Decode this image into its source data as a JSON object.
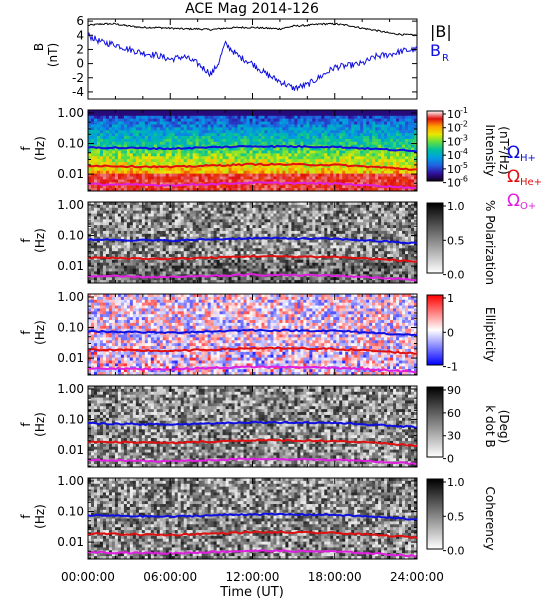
{
  "chart_data": {
    "title": "ACE Mag 2014-126",
    "type": "line",
    "x_axis": {
      "label": "Time (UT)",
      "ticks": [
        "00:00:00",
        "06:00:00",
        "12:00:00",
        "18:00:00",
        "24:00:00"
      ],
      "range_hours": [
        0,
        24
      ]
    },
    "panels": [
      {
        "id": "b-field",
        "type": "line",
        "ylabel": "B",
        "yunit": "(nT)",
        "yticks": [
          "6",
          "4",
          "2",
          "0",
          "-2",
          "-4"
        ],
        "ylim": [
          -5,
          6.3
        ],
        "legend": [
          {
            "label": "|B|",
            "color": "#000000"
          },
          {
            "label": "B",
            "sub": "R",
            "color": "#1010e0"
          }
        ],
        "series": [
          {
            "name": "|B|",
            "color": "#000000",
            "x": [
              0,
              1,
              2,
              3,
              4,
              5,
              6,
              7,
              8,
              9,
              10,
              11,
              12,
              13,
              14,
              15,
              16,
              17,
              18,
              19,
              20,
              21,
              22,
              23,
              24
            ],
            "values": [
              5.4,
              5.6,
              5.6,
              5.3,
              5.1,
              5.1,
              5.0,
              4.9,
              4.9,
              4.8,
              5.0,
              5.1,
              5.1,
              5.0,
              4.9,
              5.3,
              5.4,
              5.6,
              5.6,
              5.4,
              5.0,
              4.7,
              4.3,
              4.1,
              4.0
            ]
          },
          {
            "name": "B_R",
            "color": "#1010e0",
            "x": [
              0,
              1,
              2,
              3,
              4,
              5,
              6,
              7,
              8,
              9,
              9.5,
              10,
              11,
              12,
              13,
              14,
              15,
              16,
              17,
              18,
              19,
              20,
              21,
              22,
              23,
              24
            ],
            "values": [
              4.0,
              3.0,
              2.7,
              2.0,
              1.5,
              1.2,
              0.6,
              1.0,
              0.0,
              -1.5,
              0.0,
              2.8,
              1.0,
              0.0,
              -1.5,
              -2.5,
              -3.5,
              -3.0,
              -1.8,
              -0.5,
              -0.3,
              0.0,
              1.0,
              1.3,
              1.8,
              2.0
            ]
          }
        ]
      },
      {
        "id": "intensity",
        "type": "heatmap",
        "ylabel": "f",
        "yunit": "(Hz)",
        "yticks": [
          "1.00",
          "0.10",
          "0.01"
        ],
        "ylog": true,
        "colorbar": {
          "ticks": [
            "10",
            "10",
            "10",
            "10",
            "10",
            "10"
          ],
          "exponents": [
            "-1",
            "-2",
            "-3",
            "-4",
            "-5",
            "-6"
          ],
          "label": "Intensity",
          "unit": "(nT²/Hz)",
          "colors": [
            "#ffffff",
            "#e01010",
            "#ffa000",
            "#e8e800",
            "#60e040",
            "#00c0a0",
            "#00a0e0",
            "#2060e0",
            "#3010a0",
            "#10001a"
          ]
        },
        "overlay_legend": [
          {
            "label": "Ω",
            "sub": "H+",
            "color": "#1010e0"
          },
          {
            "label": "Ω",
            "sub": "He+",
            "color": "#e01010"
          },
          {
            "label": "Ω",
            "sub": "O+",
            "color": "#e020e0"
          }
        ]
      },
      {
        "id": "polarization",
        "type": "heatmap",
        "ylabel": "f",
        "yunit": "(Hz)",
        "yticks": [
          "1.00",
          "0.10",
          "0.01"
        ],
        "colorbar": {
          "ticks": [
            "1.0",
            "0.5",
            "0.0"
          ],
          "label": "% Polarization",
          "colors": [
            "#000000",
            "#ffffff"
          ]
        }
      },
      {
        "id": "ellipticity",
        "type": "heatmap",
        "ylabel": "f",
        "yunit": "(Hz)",
        "yticks": [
          "1.00",
          "0.10",
          "0.01"
        ],
        "colorbar": {
          "ticks": [
            "1",
            "0",
            "-1"
          ],
          "label": "Ellipticity",
          "colors": [
            "#ff0000",
            "#ffffff",
            "#0000ff"
          ]
        }
      },
      {
        "id": "k-dot-b",
        "type": "heatmap",
        "ylabel": "f",
        "yunit": "(Hz)",
        "yticks": [
          "1.00",
          "0.10",
          "0.01"
        ],
        "colorbar": {
          "ticks": [
            "90",
            "60",
            "30",
            "0"
          ],
          "label": "k dot B",
          "unit": "(Deg)",
          "colors": [
            "#000000",
            "#ffffff"
          ]
        }
      },
      {
        "id": "coherency",
        "type": "heatmap",
        "ylabel": "f",
        "yunit": "(Hz)",
        "yticks": [
          "1.00",
          "0.10",
          "0.01"
        ],
        "colorbar": {
          "ticks": [
            "1.0",
            "0.5",
            "0.0"
          ],
          "label": "Coherency",
          "colors": [
            "#000000",
            "#ffffff"
          ]
        }
      }
    ],
    "gyrofrequency_lines": [
      {
        "name": "Ω_H+",
        "color": "#1010e0",
        "x": [
          0,
          6,
          12,
          18,
          24
        ],
        "values": [
          0.075,
          0.068,
          0.082,
          0.078,
          0.055
        ]
      },
      {
        "name": "Ω_He+",
        "color": "#e01010",
        "x": [
          0,
          6,
          12,
          18,
          24
        ],
        "values": [
          0.019,
          0.017,
          0.021,
          0.02,
          0.014
        ]
      },
      {
        "name": "Ω_O+",
        "color": "#e020e0",
        "x": [
          0,
          6,
          12,
          18,
          24
        ],
        "values": [
          0.0047,
          0.0043,
          0.0052,
          0.0049,
          0.0035
        ]
      }
    ]
  }
}
